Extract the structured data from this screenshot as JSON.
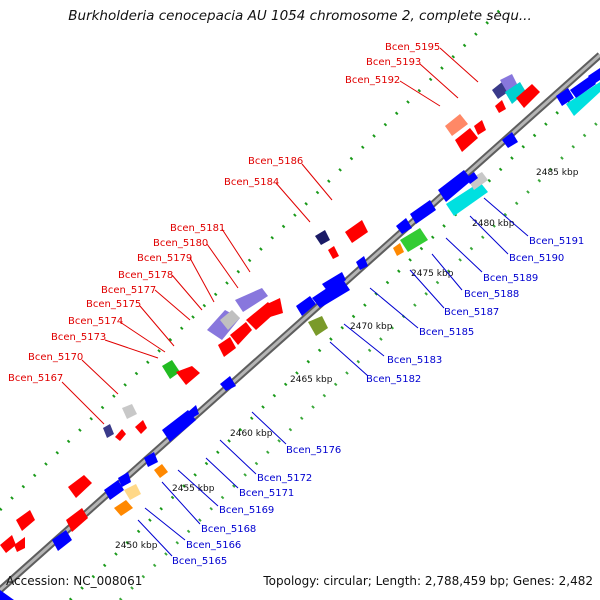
{
  "title": "Burkholderia cenocepacia AU 1054 chromosome 2, complete sequ...",
  "footer": {
    "accession": "Accession: NC_008061",
    "summary": "Topology: circular; Length: 2,788,459 bp; Genes: 2,482"
  },
  "scale_labels": [
    "2450 kbp",
    "2455 kbp",
    "2460 kbp",
    "2465 kbp",
    "2470 kbp",
    "2475 kbp",
    "2480 kbp",
    "2485 kbp"
  ],
  "genes_left": [
    "Bcen_5167",
    "Bcen_5170",
    "Bcen_5173",
    "Bcen_5174",
    "Bcen_5175",
    "Bcen_5177",
    "Bcen_5178",
    "Bcen_5179",
    "Bcen_5180",
    "Bcen_5181",
    "Bcen_5184",
    "Bcen_5186",
    "Bcen_5192",
    "Bcen_5193",
    "Bcen_5195"
  ],
  "genes_right": [
    "Bcen_5165",
    "Bcen_5166",
    "Bcen_5168",
    "Bcen_5169",
    "Bcen_5171",
    "Bcen_5172",
    "Bcen_5176",
    "Bcen_5182",
    "Bcen_5183",
    "Bcen_5185",
    "Bcen_5187",
    "Bcen_5188",
    "Bcen_5189",
    "Bcen_5190",
    "Bcen_5191"
  ],
  "colors": {
    "backbone": "#8a8a8a",
    "forward_gene": "#ff0000",
    "reverse_gene": "#0000ff",
    "cyan_gene": "#00e0e0",
    "green_gene": "#33cc33",
    "olive_gene": "#7a9a2a",
    "lavender_gene": "#8877dd",
    "orange_gene": "#ff8800",
    "navy_gene": "#1a1a66",
    "dot_green": "#1a9a1a"
  }
}
